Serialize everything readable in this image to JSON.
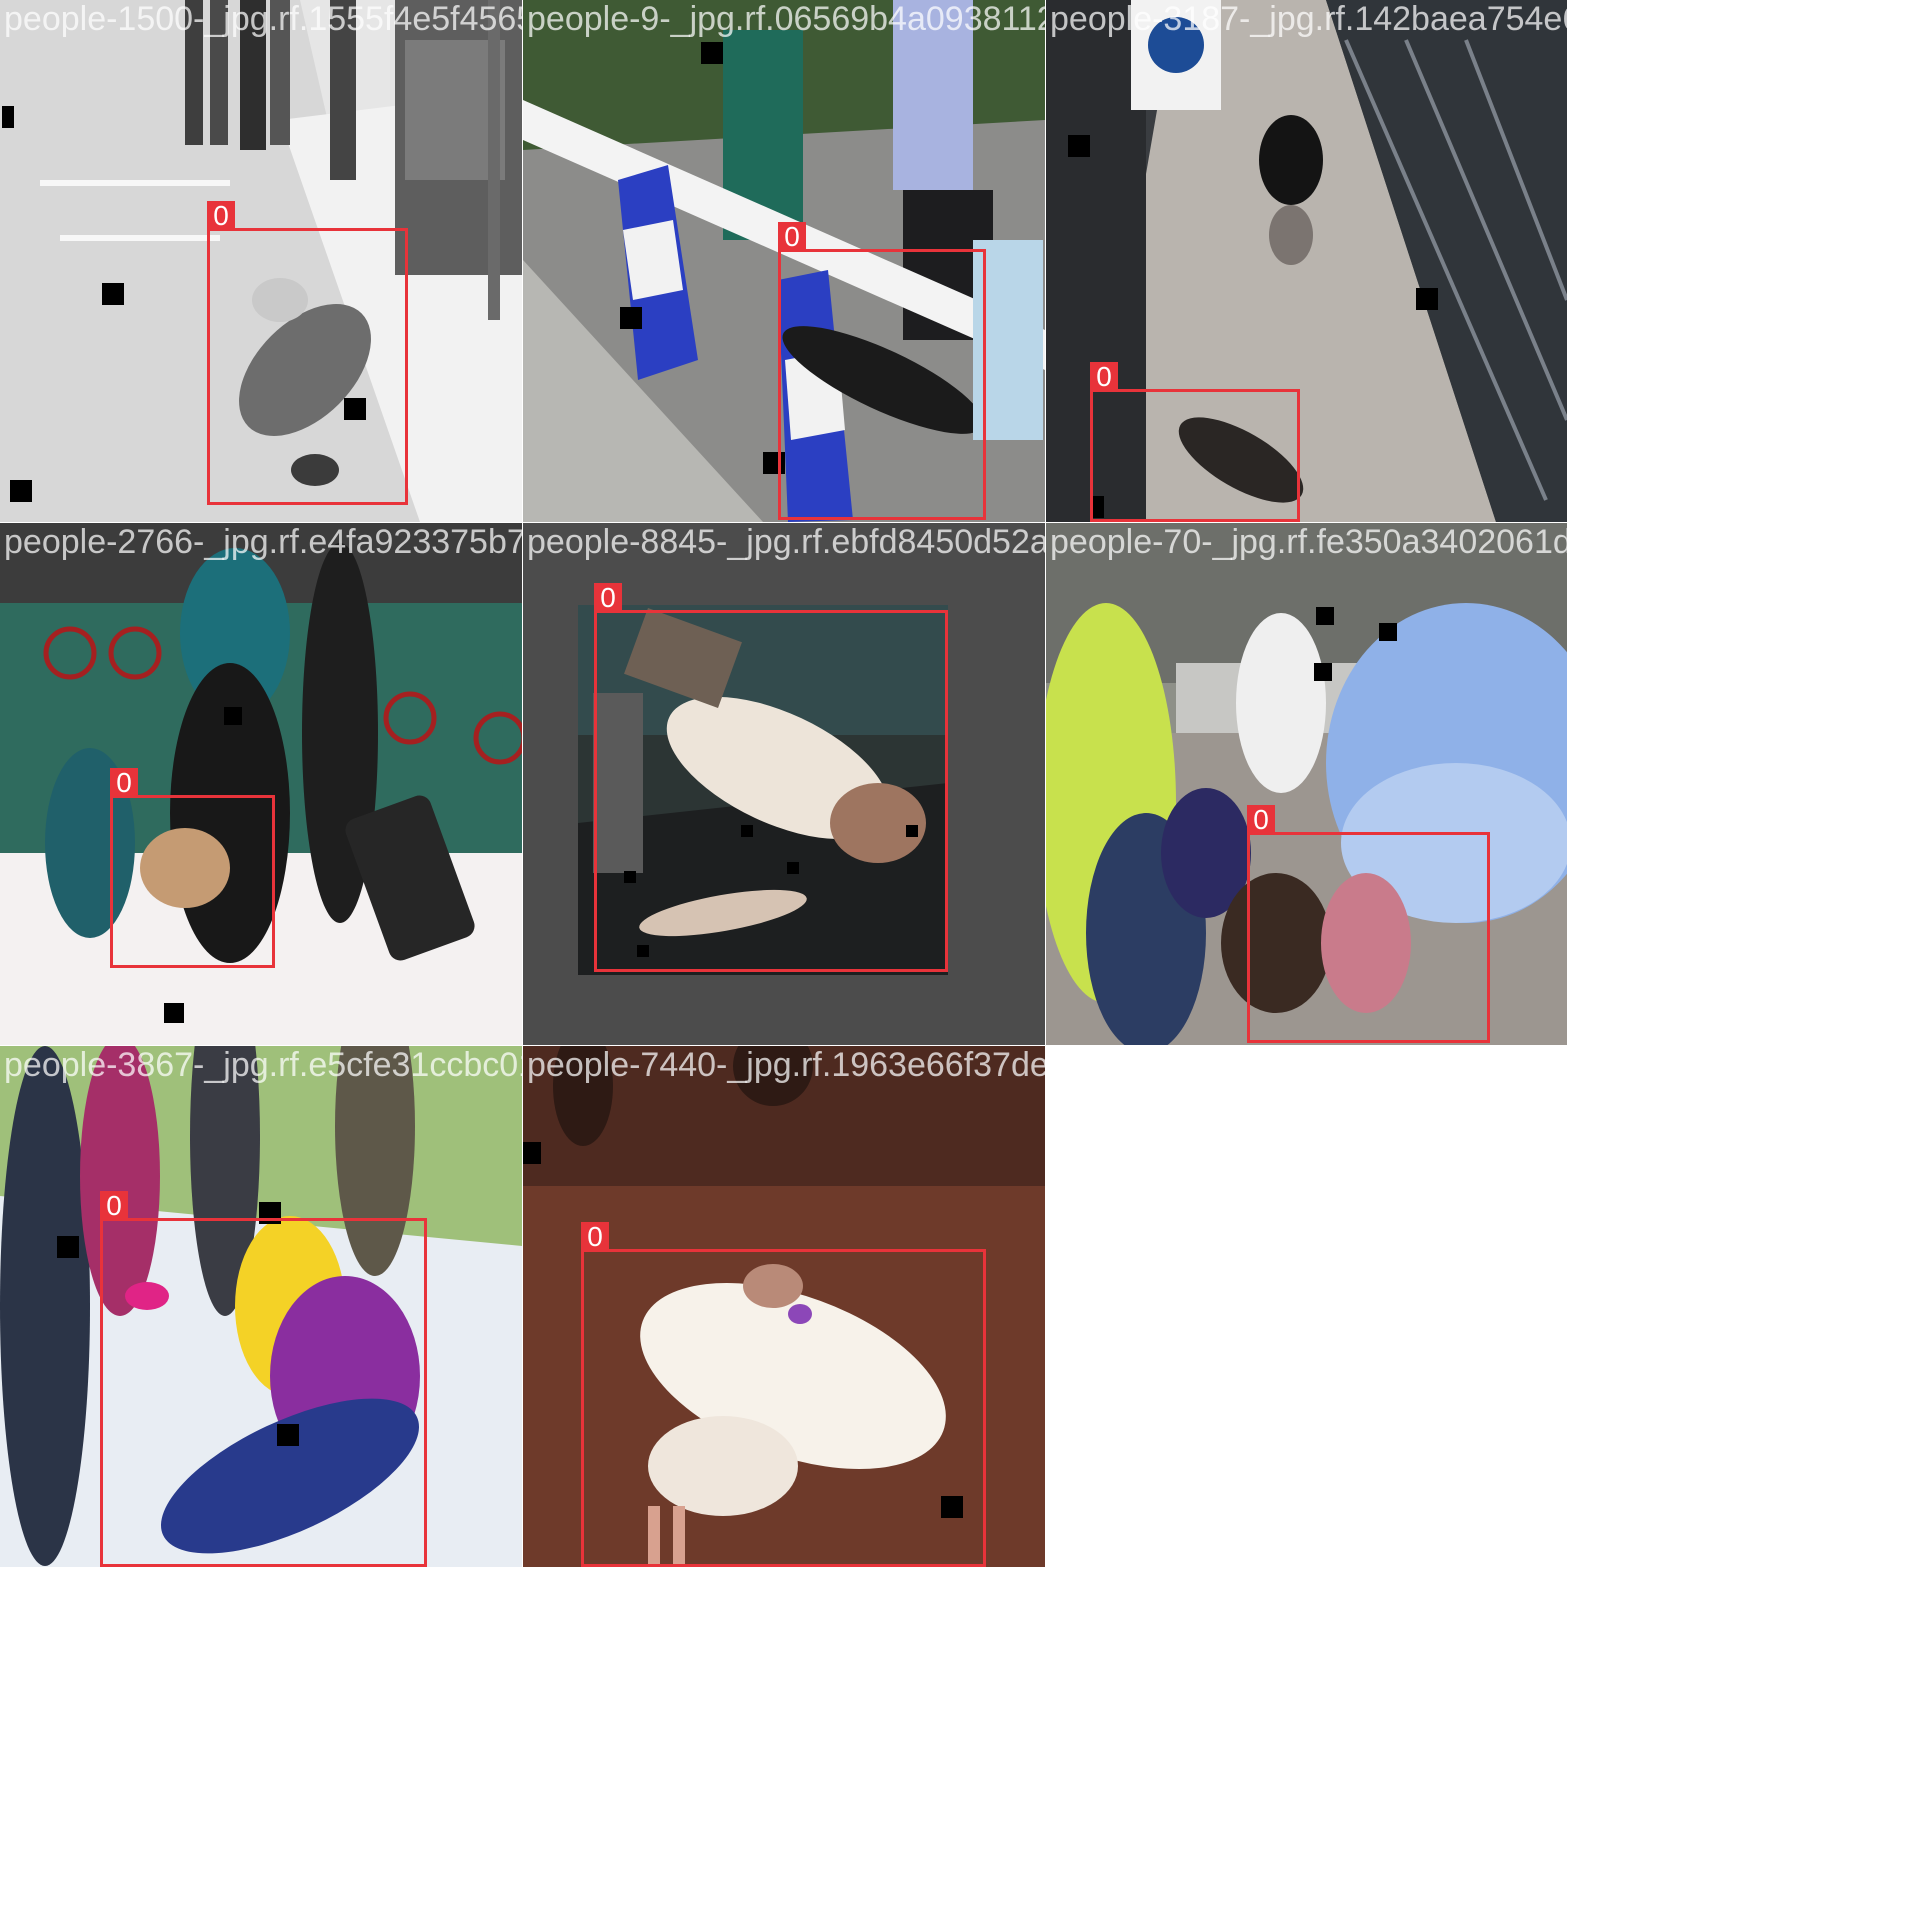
{
  "grid": {
    "columns": 3,
    "rows": 3
  },
  "tiles": [
    {
      "filename": "people-1500-_jpg.rf.1555f4e5f456564ce13e",
      "scene": "grayscale-street",
      "box_label": "0"
    },
    {
      "filename": "people-9-_jpg.rf.06569b4a09381126ea95e8a",
      "scene": "traffic-barrier",
      "box_label": "0"
    },
    {
      "filename": "people-3187-_jpg.rf.142baea754e626",
      "scene": "walkway-cctv",
      "box_label": "0"
    },
    {
      "filename": "people-2766-_jpg.rf.e4fa923375b7b67e24f",
      "scene": "station-luggage",
      "box_label": "0"
    },
    {
      "filename": "people-8845-_jpg.rf.ebfd8450d52ae053e11e",
      "scene": "dark-photo",
      "box_label": "0"
    },
    {
      "filename": "people-70-_jpg.rf.fe350a3402061de48",
      "scene": "umbrella-street",
      "box_label": "0"
    },
    {
      "filename": "people-3867-_jpg.rf.e5cfe31ccbc01b96be9b",
      "scene": "police-grass",
      "box_label": "0"
    },
    {
      "filename": "people-7440-_jpg.rf.1963e66f37de287b13d3",
      "scene": "dirt-field",
      "box_label": "0"
    }
  ],
  "colors": {
    "box": "#e8333a",
    "label_text": "#ffffff",
    "background": "#ffffff"
  }
}
